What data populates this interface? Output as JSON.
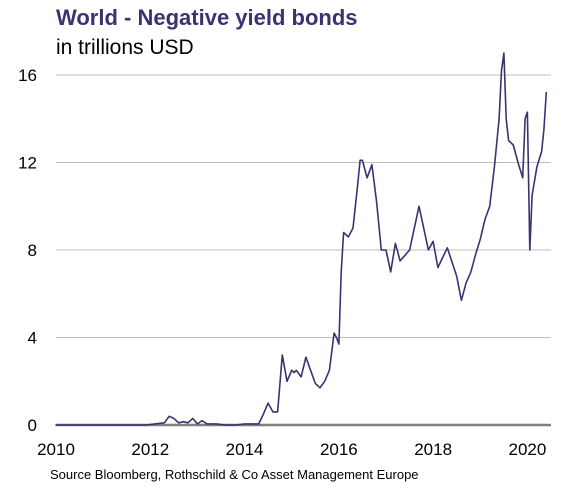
{
  "chart_data": {
    "type": "line",
    "title": "World - Negative yield bonds",
    "subtitle": "in trillions USD",
    "source": "Source Bloomberg, Rothschild & Co Asset Management Europe",
    "xlabel": "",
    "ylabel": "",
    "xlim": [
      2010,
      2020.5
    ],
    "ylim": [
      0,
      16
    ],
    "x_ticks": [
      "2010",
      "2012",
      "2014",
      "2016",
      "2018",
      "2020"
    ],
    "y_ticks": [
      "0",
      "4",
      "8",
      "12",
      "16"
    ],
    "grid": "horizontal",
    "colors": {
      "line": "#3b3272",
      "grid": "#bfbfbf",
      "axis": "#7f7f7f",
      "title": "#3b3272"
    },
    "series": [
      {
        "x": [
          2010.0,
          2010.5,
          2011.0,
          2011.5,
          2011.9,
          2012.1,
          2012.3,
          2012.4,
          2012.5,
          2012.6,
          2012.7,
          2012.8,
          2012.9,
          2013.0,
          2013.1,
          2013.2,
          2013.4,
          2013.6,
          2013.8,
          2014.0,
          2014.3,
          2014.4,
          2014.5,
          2014.6,
          2014.7,
          2014.8,
          2014.9,
          2015.0,
          2015.05,
          2015.1,
          2015.2,
          2015.3,
          2015.4,
          2015.5,
          2015.55,
          2015.6,
          2015.7,
          2015.8,
          2015.9,
          2015.95,
          2016.0,
          2016.05,
          2016.1,
          2016.2,
          2016.3,
          2016.4,
          2016.45,
          2016.5,
          2016.6,
          2016.7,
          2016.8,
          2016.9,
          2017.0,
          2017.1,
          2017.2,
          2017.3,
          2017.5,
          2017.7,
          2017.8,
          2017.9,
          2018.0,
          2018.1,
          2018.3,
          2018.5,
          2018.6,
          2018.7,
          2018.8,
          2018.9,
          2019.0,
          2019.1,
          2019.2,
          2019.3,
          2019.4,
          2019.45,
          2019.5,
          2019.55,
          2019.6,
          2019.7,
          2019.8,
          2019.9,
          2019.95,
          2020.0,
          2020.05,
          2020.1,
          2020.2,
          2020.3,
          2020.35,
          2020.4
        ],
        "values": [
          0.0,
          0.0,
          0.0,
          0.0,
          0.0,
          0.05,
          0.1,
          0.4,
          0.3,
          0.1,
          0.15,
          0.1,
          0.3,
          0.05,
          0.2,
          0.05,
          0.05,
          0.0,
          0.0,
          0.05,
          0.05,
          0.5,
          1.0,
          0.6,
          0.6,
          3.2,
          2.0,
          2.5,
          2.4,
          2.5,
          2.2,
          3.1,
          2.5,
          1.9,
          1.8,
          1.7,
          2.0,
          2.5,
          4.2,
          4.0,
          3.7,
          7.0,
          8.8,
          8.6,
          9.0,
          11.0,
          12.1,
          12.1,
          11.3,
          11.9,
          10.2,
          8.0,
          8.0,
          7.0,
          8.3,
          7.5,
          8.0,
          10.0,
          9.0,
          8.0,
          8.4,
          7.2,
          8.1,
          6.8,
          5.7,
          6.5,
          7.0,
          7.8,
          8.5,
          9.4,
          10.0,
          11.8,
          14.0,
          16.2,
          17.0,
          14.0,
          13.0,
          12.8,
          12.0,
          11.3,
          14.0,
          14.3,
          8.0,
          10.5,
          11.8,
          12.5,
          13.5,
          15.2
        ]
      }
    ]
  }
}
